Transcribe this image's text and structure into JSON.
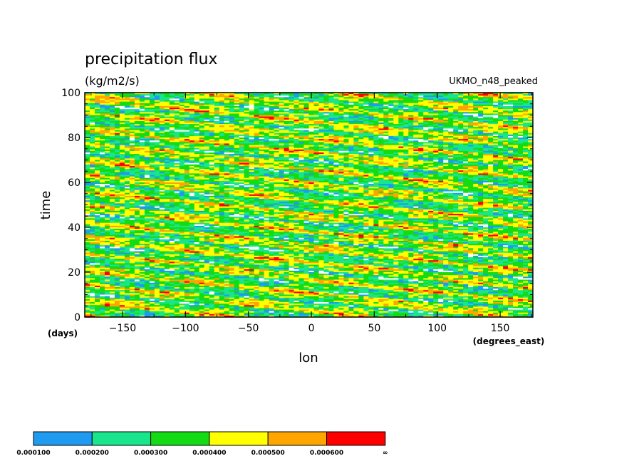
{
  "chart_data": {
    "type": "heatmap",
    "title": "precipitation flux",
    "units": "(kg/m2/s)",
    "dataset": "UKMO_n48_peaked",
    "xlabel": "lon",
    "xunit": "(degrees_east)",
    "ylabel": "time",
    "yunit": "(days)",
    "xlim": [
      -180,
      176
    ],
    "ylim": [
      0,
      100
    ],
    "xticks": [
      -150,
      -100,
      -50,
      0,
      50,
      100,
      150
    ],
    "yticks": [
      0,
      20,
      40,
      60,
      80,
      100
    ],
    "colorbar": {
      "levels": [
        "0.000100",
        "0.000200",
        "0.000300",
        "0.000400",
        "0.000500",
        "0.000600",
        "∞"
      ],
      "colors": [
        "#1e9bf0",
        "#19e68c",
        "#14dc14",
        "#ffff00",
        "#ffa500",
        "#ff0000"
      ]
    },
    "below_min_color": "#ffffff",
    "pattern": "eastward-propagating bands of precipitation sloping upward toward the east across all 100 days; mostly 0.0002–0.0004 kg/m2/s with scattered maxima above 0.0006"
  }
}
